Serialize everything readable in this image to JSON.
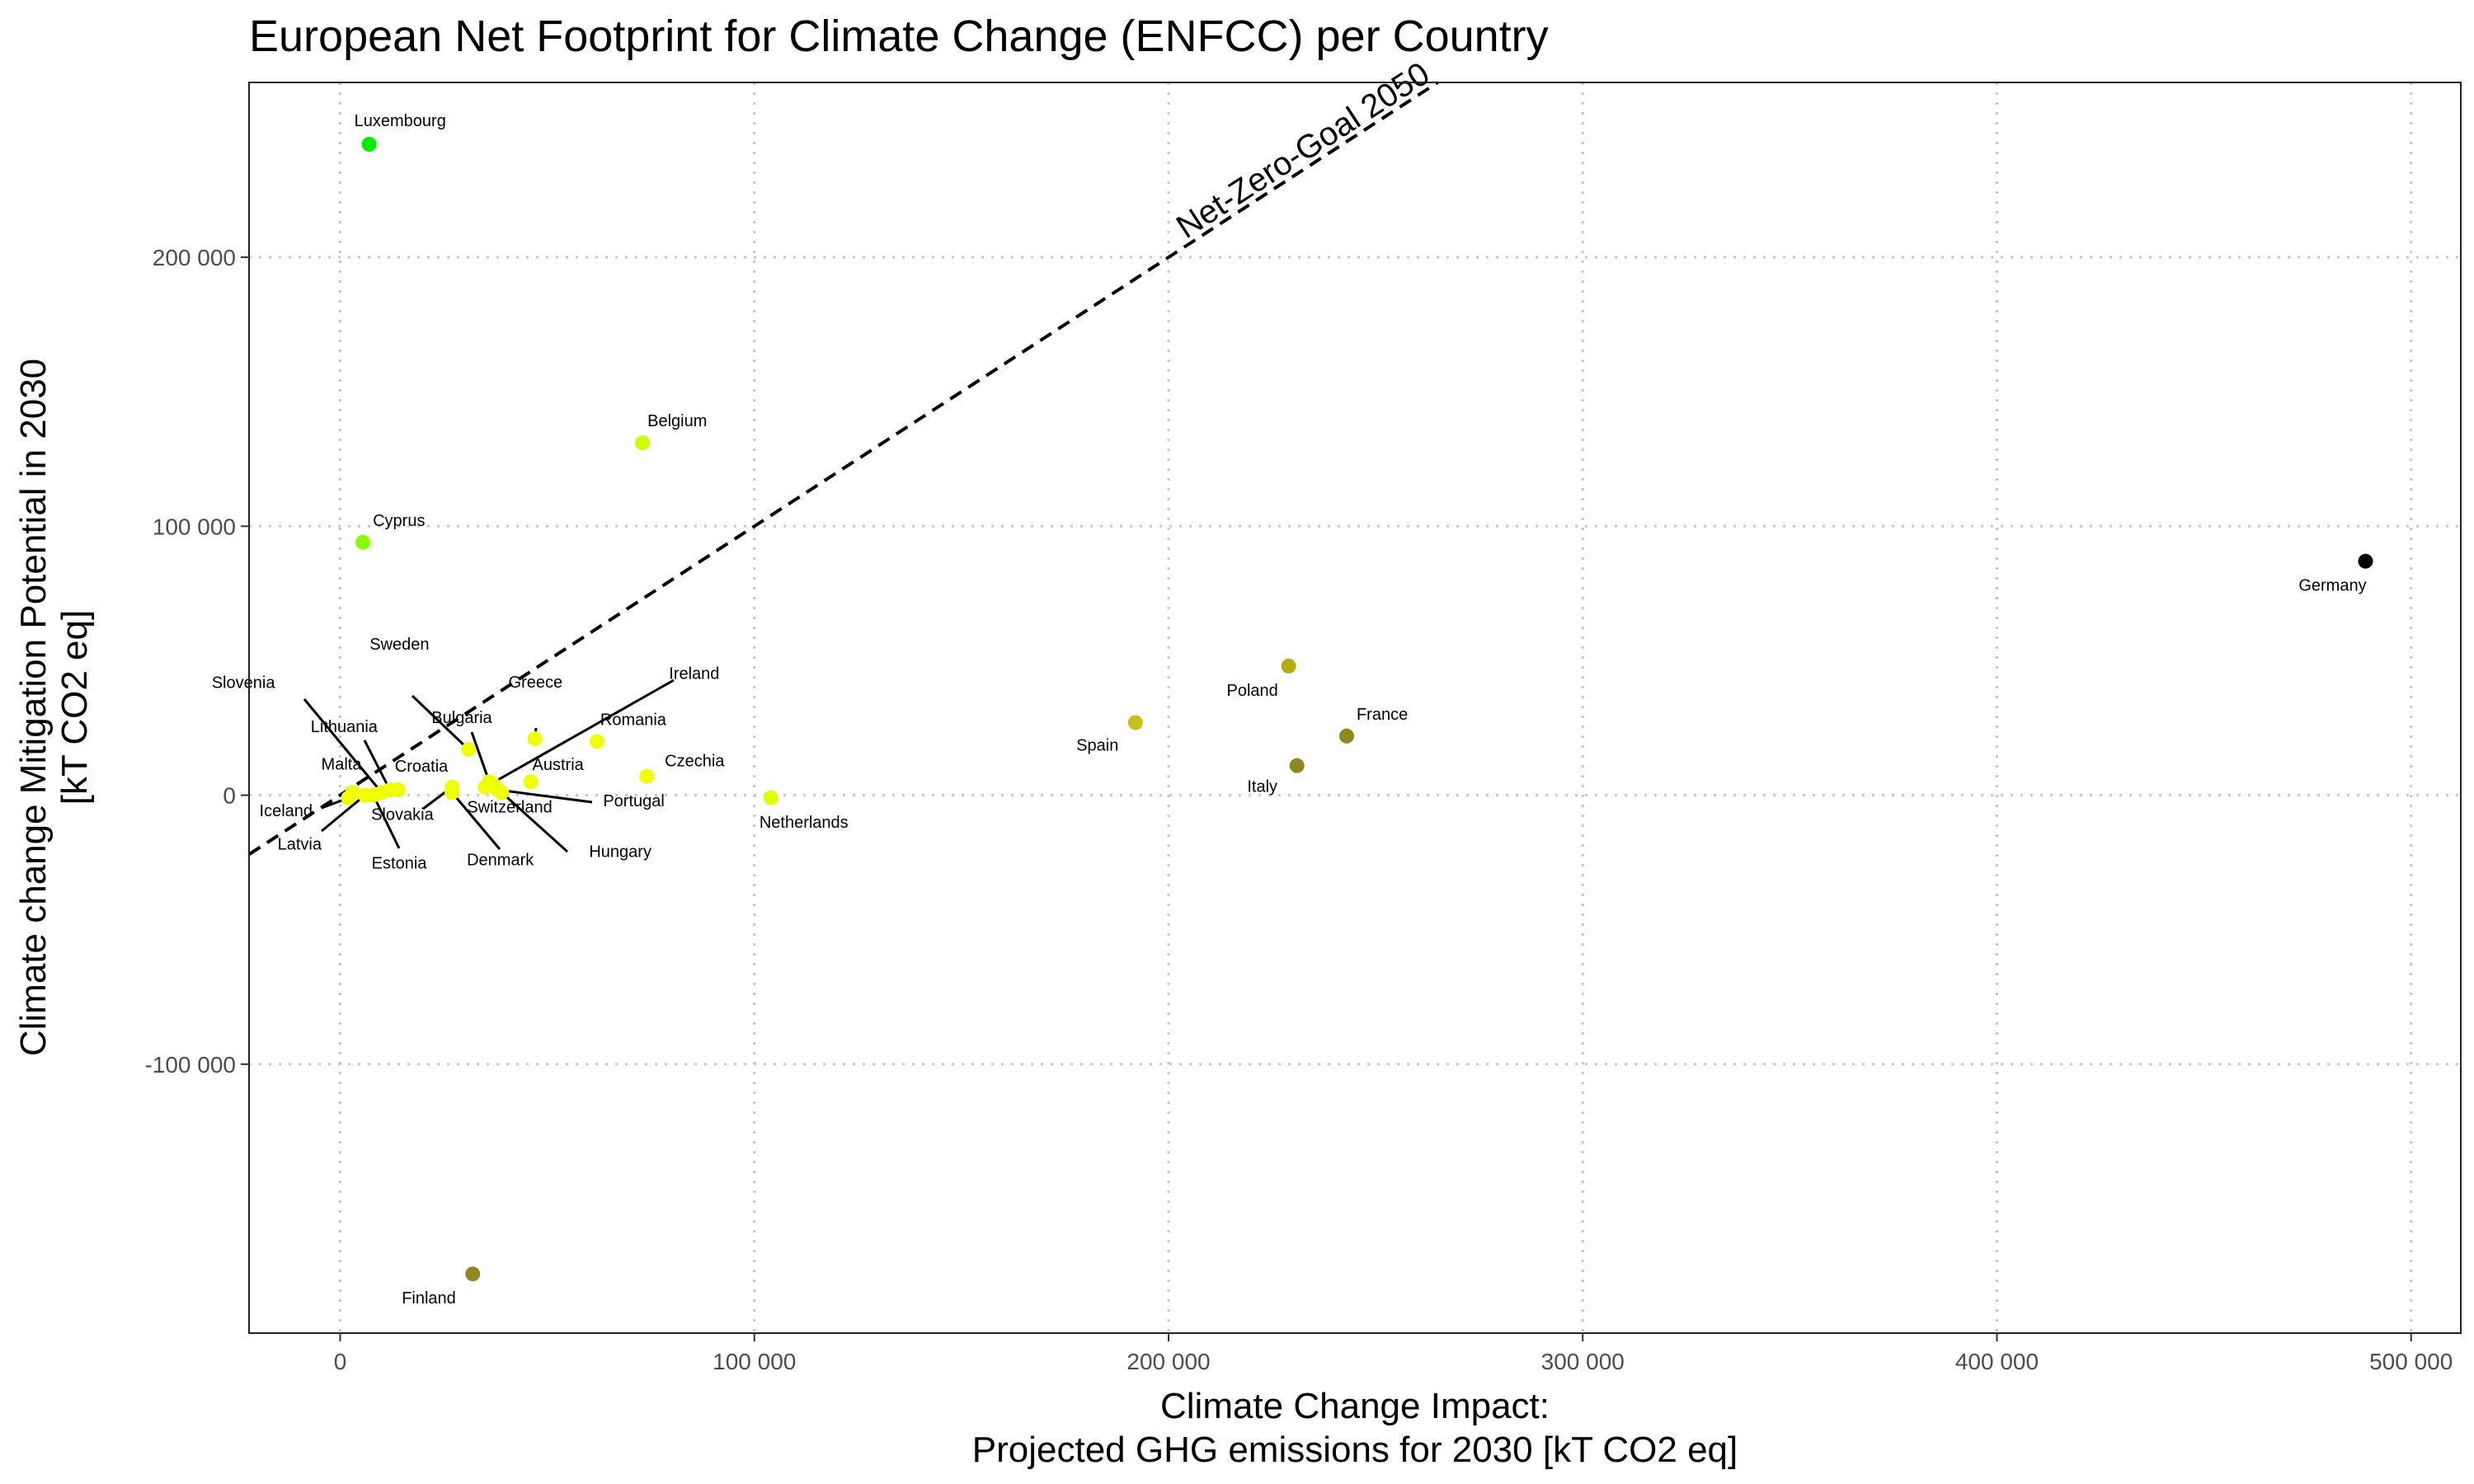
{
  "chart_data": {
    "type": "scatter",
    "title": "European Net Footprint for Climate Change (ENFCC) per Country",
    "xlabel": [
      "Climate Change Impact:",
      "Projected GHG emissions for 2030 [kT CO2 eq]"
    ],
    "ylabel": [
      "Climate change Mitigation Potential in 2030",
      "[kT CO2 eq]"
    ],
    "xlim": [
      -22000,
      512000
    ],
    "ylim": [
      -200000,
      265000
    ],
    "x_ticks": [
      0,
      100000,
      200000,
      300000,
      400000,
      500000
    ],
    "x_tick_labels": [
      "0",
      "100 000",
      "200 000",
      "300 000",
      "400 000",
      "500 000"
    ],
    "y_ticks": [
      -100000,
      0,
      100000,
      200000
    ],
    "y_tick_labels": [
      "-100 000",
      "0",
      "100 000",
      "200 000"
    ],
    "grid": true,
    "reference_line": {
      "label": "Net-Zero-Goal 2050",
      "slope": 1,
      "intercept": 0
    },
    "color_scale": "green-yellow-olive-black by emissions",
    "points": [
      {
        "name": "Luxembourg",
        "x": 7000,
        "y": 242000,
        "color": "#00ee00"
      },
      {
        "name": "Cyprus",
        "x": 5500,
        "y": 94000,
        "color": "#88ff00"
      },
      {
        "name": "Belgium",
        "x": 73000,
        "y": 131000,
        "color": "#ccff00"
      },
      {
        "name": "Germany",
        "x": 489000,
        "y": 87000,
        "color": "#000000"
      },
      {
        "name": "Poland",
        "x": 229000,
        "y": 48000,
        "color": "#b3ad11"
      },
      {
        "name": "France",
        "x": 243000,
        "y": 22000,
        "color": "#8c8a1c"
      },
      {
        "name": "Italy",
        "x": 231000,
        "y": 11000,
        "color": "#8d8820"
      },
      {
        "name": "Spain",
        "x": 192000,
        "y": 27000,
        "color": "#c2c21a"
      },
      {
        "name": "Netherlands",
        "x": 104000,
        "y": -1000,
        "color": "#ddff00"
      },
      {
        "name": "Czechia",
        "x": 74000,
        "y": 7000,
        "color": "#eeff00"
      },
      {
        "name": "Romania",
        "x": 62000,
        "y": 20000,
        "color": "#eeff00"
      },
      {
        "name": "Greece",
        "x": 47000,
        "y": 21000,
        "color": "#eeff00"
      },
      {
        "name": "Austria",
        "x": 46000,
        "y": 5000,
        "color": "#eeff00"
      },
      {
        "name": "Bulgaria",
        "x": 36000,
        "y": 5000,
        "color": "#eeff00"
      },
      {
        "name": "Sweden",
        "x": 31000,
        "y": 17000,
        "color": "#eeff00"
      },
      {
        "name": "Ireland",
        "x": 35000,
        "y": 3000,
        "color": "#eeff00"
      },
      {
        "name": "Portugal",
        "x": 38000,
        "y": 2000,
        "color": "#eeff00"
      },
      {
        "name": "Switzerland",
        "x": 37000,
        "y": 4000,
        "color": "#eeff00"
      },
      {
        "name": "Hungary",
        "x": 39000,
        "y": 1000,
        "color": "#eeff00"
      },
      {
        "name": "Denmark",
        "x": 27000,
        "y": 1000,
        "color": "#eeff00"
      },
      {
        "name": "Slovakia",
        "x": 27000,
        "y": 3000,
        "color": "#eeff00"
      },
      {
        "name": "Croatia",
        "x": 14000,
        "y": 2000,
        "color": "#eeff00"
      },
      {
        "name": "Lithuania",
        "x": 12000,
        "y": 2000,
        "color": "#eeff00"
      },
      {
        "name": "Slovenia",
        "x": 10000,
        "y": 1000,
        "color": "#eeff00"
      },
      {
        "name": "Estonia",
        "x": 8000,
        "y": 0,
        "color": "#eeff00"
      },
      {
        "name": "Latvia",
        "x": 6000,
        "y": 0,
        "color": "#eeff00"
      },
      {
        "name": "Malta",
        "x": 3000,
        "y": 1000,
        "color": "#eeff00"
      },
      {
        "name": "Iceland",
        "x": 2000,
        "y": -1000,
        "color": "#eeff00"
      },
      {
        "name": "Finland",
        "x": 32000,
        "y": -178000,
        "color": "#8d8820"
      }
    ]
  }
}
